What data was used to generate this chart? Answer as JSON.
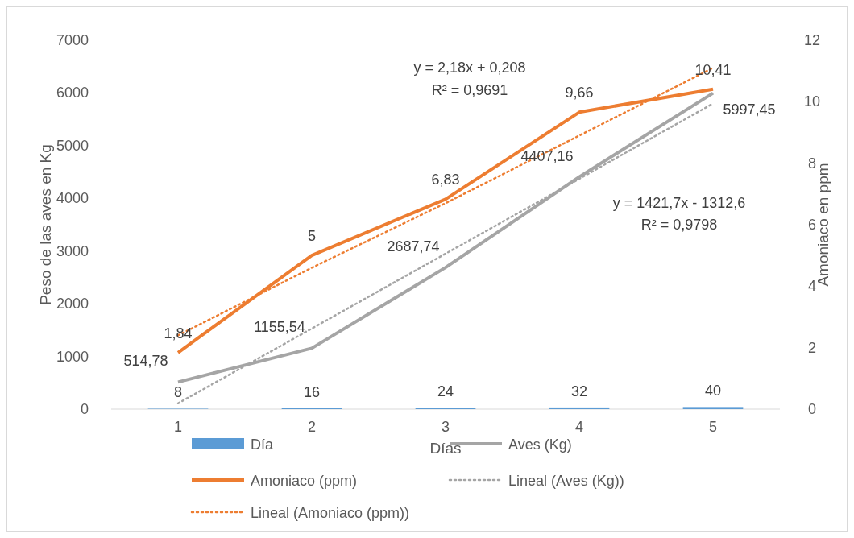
{
  "chart_data": {
    "type": "bar",
    "xlabel": "Días",
    "ylabel": "Peso de las aves en Kg",
    "y2label": "Amoniaco en ppm",
    "x": [
      1,
      2,
      3,
      4,
      5
    ],
    "xlim": [
      0.5,
      5.5
    ],
    "xticks": [
      1,
      2,
      3,
      4,
      5
    ],
    "ylim": [
      0,
      7000
    ],
    "yticks": [
      0,
      1000,
      2000,
      3000,
      4000,
      5000,
      6000,
      7000
    ],
    "y2lim": [
      0,
      12
    ],
    "y2ticks": [
      0,
      2,
      4,
      6,
      8,
      10,
      12
    ],
    "grid": false,
    "legend": "bottom",
    "marker": "none",
    "series": [
      {
        "name": "Día",
        "color": "#5b9bd5",
        "values": [
          8,
          16,
          24,
          32,
          40
        ],
        "value_labels": [
          "8",
          "16",
          "24",
          "32",
          "40"
        ]
      },
      {
        "name": "Aves (Kg)",
        "type": "line",
        "color": "#a5a5a5",
        "values": [
          514.78,
          1155.54,
          2687.74,
          4407.16,
          5997.45
        ],
        "value_labels": [
          "514,78",
          "1155,54",
          "2687,74",
          "4407,16",
          "5997,45"
        ]
      },
      {
        "name": "Amoniaco (ppm)",
        "type": "line",
        "axis": "y2",
        "color": "#ed7d31",
        "values": [
          1.84,
          5,
          6.83,
          9.66,
          10.41
        ],
        "value_labels": [
          "1,84",
          "5",
          "6,83",
          "9,66",
          "10,41"
        ]
      },
      {
        "name": "Lineal (Aves (Kg))",
        "type": "line",
        "line_style": "dotted",
        "color": "#a5a5a5",
        "values": [
          110,
          1530,
          2950,
          4370,
          5800
        ]
      },
      {
        "name": "Lineal (Amoniaco (ppm))",
        "type": "line",
        "line_style": "dotted",
        "axis": "y2",
        "color": "#ed7d31",
        "values": [
          2.4,
          4.6,
          6.7,
          8.9,
          11.1
        ]
      }
    ],
    "annotations": [
      "y = 2,18x + 0,208",
      "R² = 0,9691",
      "y = 1421,7x - 1312,6",
      "R² = 0,9798"
    ]
  }
}
